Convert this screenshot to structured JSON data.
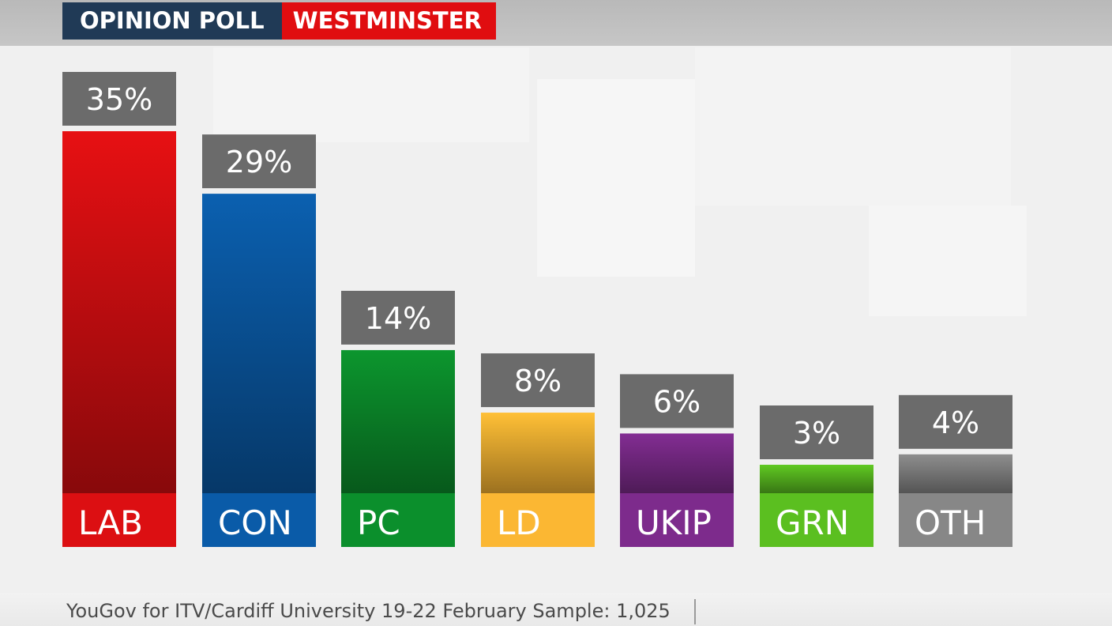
{
  "header": {
    "label": "OPINION POLL",
    "region": "WESTMINSTER"
  },
  "chart_data": {
    "type": "bar",
    "categories": [
      "LAB",
      "CON",
      "PC",
      "LD",
      "UKIP",
      "GRN",
      "OTH"
    ],
    "values": [
      35,
      29,
      14,
      8,
      6,
      3,
      4
    ],
    "value_labels": [
      "35%",
      "29%",
      "14%",
      "8%",
      "6%",
      "3%",
      "4%"
    ],
    "colors": [
      "#dc0f12",
      "#0a5ba8",
      "#0b8f2c",
      "#fbb733",
      "#7d2b8c",
      "#5bbf20",
      "#878787"
    ],
    "title": "",
    "xlabel": "",
    "ylabel": "",
    "ylim": [
      0,
      35
    ],
    "grid": false,
    "legend": "none"
  },
  "footer": {
    "source": "YouGov for ITV/Cardiff University 19-22 February Sample: 1,025"
  }
}
